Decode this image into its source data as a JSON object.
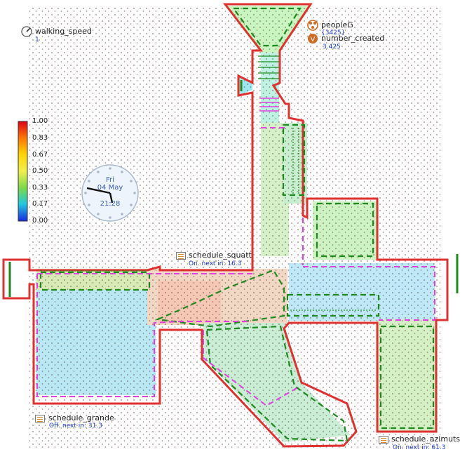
{
  "variables": {
    "walking_speed": {
      "label": "walking_speed",
      "value": "1"
    },
    "peopleG": {
      "label": "peopleG",
      "value": "{3425}"
    },
    "number_created": {
      "label": "number_created",
      "value": "3.425"
    }
  },
  "schedules": [
    {
      "label": "schedule_squatt",
      "status": "On. next in: 16.3"
    },
    {
      "label": "schedule_grande",
      "status": "Off. next in: 31.3"
    },
    {
      "label": "schedule_azimuts",
      "status": "On. next in: 61.3"
    }
  ],
  "legend": {
    "ticks": [
      "1.00",
      "0.83",
      "0.67",
      "0.50",
      "0.33",
      "0.17",
      "0.00"
    ]
  },
  "clock": {
    "day": "Fri",
    "date": "04 May",
    "time": "21:28"
  },
  "colors": {
    "wall": "#e03131",
    "area_outline": "#1e8a1e",
    "zone_outline": "#e040e0",
    "accent_blue": "#1d3bd6",
    "variable_icon": "#d2691e"
  }
}
